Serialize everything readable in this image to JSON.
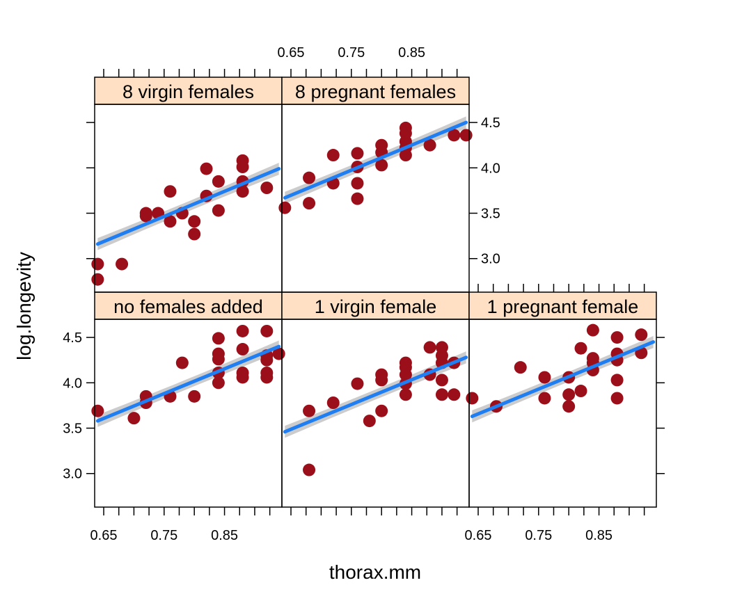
{
  "chart_data": {
    "type": "scatter",
    "xlabel": "thorax.mm",
    "ylabel": "log.longevity",
    "xlim": [
      0.635,
      0.945
    ],
    "ylim": [
      2.63,
      4.7
    ],
    "x_ticks": [
      0.65,
      0.75,
      0.85
    ],
    "x_tick_labels": [
      "0.65",
      "0.75",
      "0.85"
    ],
    "y_ticks": [
      3.0,
      3.5,
      4.0,
      4.5
    ],
    "y_tick_labels": [
      "3.0",
      "3.5",
      "4.0",
      "4.5"
    ],
    "colors": {
      "points": "#9b0f1a",
      "fit_line": "#1f7ef2",
      "band": "#cccccc",
      "strip": "#ffe0c4"
    },
    "panels": [
      {
        "label": "8 virgin females",
        "fit": {
          "x": [
            0.64,
            0.94
          ],
          "y": [
            3.16,
            3.99
          ]
        },
        "points": [
          {
            "x": 0.64,
            "y": 2.77
          },
          {
            "x": 0.64,
            "y": 2.94
          },
          {
            "x": 0.68,
            "y": 2.94
          },
          {
            "x": 0.72,
            "y": 3.47
          },
          {
            "x": 0.72,
            "y": 3.5
          },
          {
            "x": 0.74,
            "y": 3.5
          },
          {
            "x": 0.76,
            "y": 3.74
          },
          {
            "x": 0.76,
            "y": 3.41
          },
          {
            "x": 0.78,
            "y": 3.5
          },
          {
            "x": 0.8,
            "y": 3.27
          },
          {
            "x": 0.8,
            "y": 3.41
          },
          {
            "x": 0.82,
            "y": 3.99
          },
          {
            "x": 0.82,
            "y": 3.69
          },
          {
            "x": 0.84,
            "y": 3.85
          },
          {
            "x": 0.84,
            "y": 3.53
          },
          {
            "x": 0.88,
            "y": 4.08
          },
          {
            "x": 0.88,
            "y": 4.01
          },
          {
            "x": 0.88,
            "y": 3.85
          },
          {
            "x": 0.88,
            "y": 3.74
          },
          {
            "x": 0.92,
            "y": 3.78
          }
        ]
      },
      {
        "label": "8 pregnant females",
        "fit": {
          "x": [
            0.64,
            0.94
          ],
          "y": [
            3.67,
            4.5
          ]
        },
        "points": [
          {
            "x": 0.64,
            "y": 3.56
          },
          {
            "x": 0.68,
            "y": 3.61
          },
          {
            "x": 0.68,
            "y": 3.89
          },
          {
            "x": 0.72,
            "y": 3.83
          },
          {
            "x": 0.72,
            "y": 4.14
          },
          {
            "x": 0.76,
            "y": 3.66
          },
          {
            "x": 0.76,
            "y": 3.83
          },
          {
            "x": 0.76,
            "y": 4.01
          },
          {
            "x": 0.76,
            "y": 4.16
          },
          {
            "x": 0.8,
            "y": 4.03
          },
          {
            "x": 0.8,
            "y": 4.17
          },
          {
            "x": 0.8,
            "y": 4.25
          },
          {
            "x": 0.84,
            "y": 4.14
          },
          {
            "x": 0.84,
            "y": 4.22
          },
          {
            "x": 0.84,
            "y": 4.29
          },
          {
            "x": 0.84,
            "y": 4.38
          },
          {
            "x": 0.84,
            "y": 4.44
          },
          {
            "x": 0.88,
            "y": 4.25
          },
          {
            "x": 0.92,
            "y": 4.36
          },
          {
            "x": 0.94,
            "y": 4.36
          }
        ]
      },
      {
        "label": "no females added",
        "fit": {
          "x": [
            0.64,
            0.94
          ],
          "y": [
            3.58,
            4.4
          ]
        },
        "points": [
          {
            "x": 0.64,
            "y": 3.69
          },
          {
            "x": 0.7,
            "y": 3.61
          },
          {
            "x": 0.72,
            "y": 3.78
          },
          {
            "x": 0.72,
            "y": 3.85
          },
          {
            "x": 0.76,
            "y": 3.85
          },
          {
            "x": 0.78,
            "y": 4.22
          },
          {
            "x": 0.8,
            "y": 3.85
          },
          {
            "x": 0.84,
            "y": 4.0
          },
          {
            "x": 0.84,
            "y": 4.11
          },
          {
            "x": 0.84,
            "y": 4.26
          },
          {
            "x": 0.84,
            "y": 4.32
          },
          {
            "x": 0.84,
            "y": 4.49
          },
          {
            "x": 0.88,
            "y": 4.06
          },
          {
            "x": 0.88,
            "y": 4.11
          },
          {
            "x": 0.88,
            "y": 4.37
          },
          {
            "x": 0.88,
            "y": 4.57
          },
          {
            "x": 0.92,
            "y": 4.06
          },
          {
            "x": 0.92,
            "y": 4.11
          },
          {
            "x": 0.92,
            "y": 4.25
          },
          {
            "x": 0.92,
            "y": 4.3
          },
          {
            "x": 0.92,
            "y": 4.57
          },
          {
            "x": 0.94,
            "y": 4.32
          }
        ]
      },
      {
        "label": "1 virgin female",
        "fit": {
          "x": [
            0.64,
            0.94
          ],
          "y": [
            3.46,
            4.28
          ]
        },
        "points": [
          {
            "x": 0.68,
            "y": 3.04
          },
          {
            "x": 0.68,
            "y": 3.69
          },
          {
            "x": 0.72,
            "y": 3.78
          },
          {
            "x": 0.76,
            "y": 3.99
          },
          {
            "x": 0.78,
            "y": 3.58
          },
          {
            "x": 0.8,
            "y": 3.69
          },
          {
            "x": 0.8,
            "y": 4.03
          },
          {
            "x": 0.8,
            "y": 4.09
          },
          {
            "x": 0.84,
            "y": 3.87
          },
          {
            "x": 0.84,
            "y": 3.99
          },
          {
            "x": 0.84,
            "y": 4.09
          },
          {
            "x": 0.84,
            "y": 4.17
          },
          {
            "x": 0.84,
            "y": 4.22
          },
          {
            "x": 0.88,
            "y": 4.09
          },
          {
            "x": 0.88,
            "y": 4.39
          },
          {
            "x": 0.9,
            "y": 3.87
          },
          {
            "x": 0.9,
            "y": 4.03
          },
          {
            "x": 0.9,
            "y": 4.22
          },
          {
            "x": 0.9,
            "y": 4.3
          },
          {
            "x": 0.9,
            "y": 4.39
          },
          {
            "x": 0.92,
            "y": 3.87
          },
          {
            "x": 0.92,
            "y": 4.22
          }
        ]
      },
      {
        "label": "1 pregnant female",
        "fit": {
          "x": [
            0.64,
            0.94
          ],
          "y": [
            3.63,
            4.45
          ]
        },
        "points": [
          {
            "x": 0.64,
            "y": 3.83
          },
          {
            "x": 0.68,
            "y": 3.74
          },
          {
            "x": 0.72,
            "y": 4.17
          },
          {
            "x": 0.76,
            "y": 3.83
          },
          {
            "x": 0.76,
            "y": 4.06
          },
          {
            "x": 0.8,
            "y": 3.74
          },
          {
            "x": 0.8,
            "y": 3.87
          },
          {
            "x": 0.8,
            "y": 4.06
          },
          {
            "x": 0.82,
            "y": 3.91
          },
          {
            "x": 0.82,
            "y": 4.38
          },
          {
            "x": 0.84,
            "y": 4.14
          },
          {
            "x": 0.84,
            "y": 4.22
          },
          {
            "x": 0.84,
            "y": 4.27
          },
          {
            "x": 0.84,
            "y": 4.58
          },
          {
            "x": 0.88,
            "y": 3.83
          },
          {
            "x": 0.88,
            "y": 4.03
          },
          {
            "x": 0.88,
            "y": 4.25
          },
          {
            "x": 0.88,
            "y": 4.32
          },
          {
            "x": 0.88,
            "y": 4.5
          },
          {
            "x": 0.92,
            "y": 4.33
          },
          {
            "x": 0.92,
            "y": 4.53
          }
        ]
      }
    ]
  }
}
